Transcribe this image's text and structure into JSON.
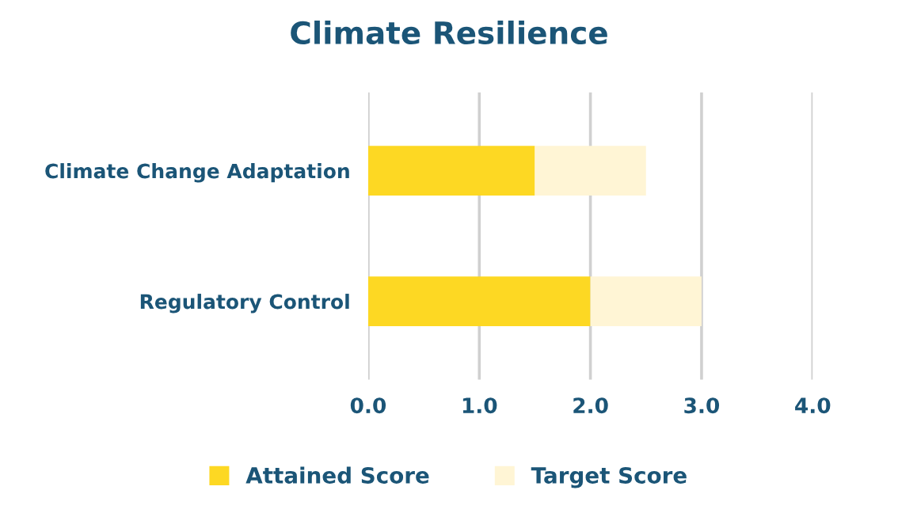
{
  "chart_data": {
    "type": "bar",
    "orientation": "horizontal",
    "stacked": true,
    "title": "Climate Resilience",
    "categories": [
      "Climate Change Adaptation",
      "Regulatory Control"
    ],
    "series": [
      {
        "name": "Attained Score",
        "color": "#fdd823",
        "values": [
          1.5,
          2.0
        ]
      },
      {
        "name": "Target Score",
        "color": "#fff5d5",
        "values": [
          1.0,
          1.0
        ]
      }
    ],
    "xlim": [
      0,
      4
    ],
    "xticks": [
      {
        "value": 0,
        "label": "0.0"
      },
      {
        "value": 1,
        "label": "1.0"
      },
      {
        "value": 2,
        "label": "2.0"
      },
      {
        "value": 3,
        "label": "3.0"
      },
      {
        "value": 4,
        "label": "4.0"
      }
    ],
    "grid": "x",
    "legend": "bottom"
  }
}
